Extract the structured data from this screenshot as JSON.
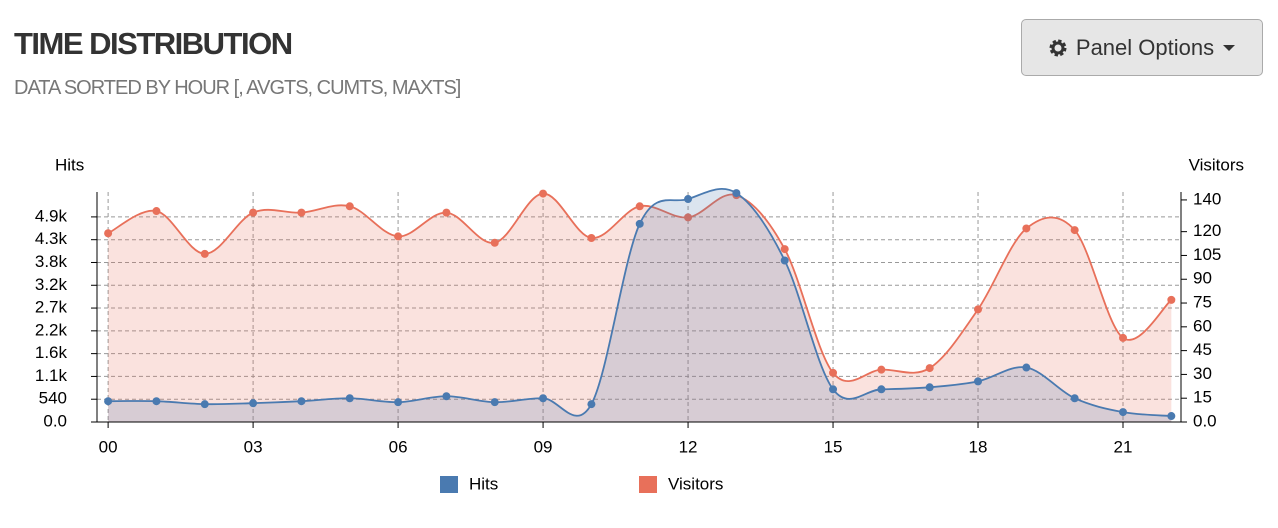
{
  "header": {
    "title": "TIME DISTRIBUTION",
    "subtitle": "DATA SORTED BY HOUR [, AVGTS, CUMTS, MAXTS]",
    "button": "Panel Options"
  },
  "chart_data": {
    "type": "line",
    "area": true,
    "grid": true,
    "legend": "bottom",
    "ylabel": "Hits",
    "y2label": "Visitors",
    "x": [
      0,
      1,
      2,
      3,
      4,
      5,
      6,
      7,
      8,
      9,
      10,
      11,
      12,
      13,
      14,
      15,
      16,
      17,
      18,
      19,
      20,
      21,
      22
    ],
    "xlim": [
      -0.23,
      22.2
    ],
    "xticks": [
      {
        "value": 0,
        "label": "00"
      },
      {
        "value": 3,
        "label": "03"
      },
      {
        "value": 6,
        "label": "06"
      },
      {
        "value": 9,
        "label": "09"
      },
      {
        "value": 12,
        "label": "12"
      },
      {
        "value": 15,
        "label": "15"
      },
      {
        "value": 18,
        "label": "18"
      },
      {
        "value": 21,
        "label": "21"
      }
    ],
    "ylim": [
      0,
      5450
    ],
    "yticks": [
      {
        "value": 0,
        "label": "0.0"
      },
      540,
      {
        "value": 1080,
        "label": "1.1k"
      },
      {
        "value": 1620,
        "label": "1.6k"
      },
      {
        "value": 2160,
        "label": "2.2k"
      },
      {
        "value": 2700,
        "label": "2.7k"
      },
      {
        "value": 3240,
        "label": "3.2k"
      },
      {
        "value": 3780,
        "label": "3.8k"
      },
      {
        "value": 4320,
        "label": "4.3k"
      },
      {
        "value": 4860,
        "label": "4.9k"
      }
    ],
    "y2lim": [
      0,
      145
    ],
    "y2ticks": [
      {
        "value": 0,
        "label": "0.0"
      },
      15,
      30,
      45,
      60,
      75,
      90,
      105,
      120,
      140
    ],
    "series": [
      {
        "name": "Hits",
        "color": "#4a7ab0",
        "values": [
          493,
          493,
          423,
          446,
          493,
          563,
          470,
          610,
          470,
          563,
          423,
          4696,
          5283,
          5424,
          3827,
          775,
          775,
          822,
          963,
          1291,
          563,
          235,
          141
        ]
      },
      {
        "name": "Visitors",
        "color": "#e8705a",
        "axis": "y2",
        "values": [
          119,
          133,
          106,
          132,
          132,
          136,
          117,
          132,
          113,
          144,
          116,
          136,
          129,
          143,
          109,
          31,
          33,
          34,
          71,
          122,
          121,
          53,
          77
        ]
      }
    ]
  }
}
